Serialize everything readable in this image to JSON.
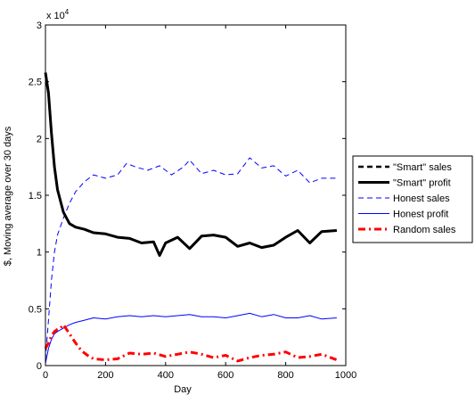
{
  "chart_data": {
    "type": "line",
    "title": "",
    "xlabel": "Day",
    "ylabel": "$, Moving average over 30 days",
    "xlim": [
      0,
      1000
    ],
    "ylim": [
      0,
      30000
    ],
    "x_ticks": [
      "0",
      "200",
      "400",
      "600",
      "800",
      "1000"
    ],
    "y_ticks": [
      "0",
      "0.5",
      "1",
      "1.5",
      "2",
      "2.5",
      "3"
    ],
    "y_multiplier": "x 10",
    "y_multiplier_exp": "4",
    "grid": false,
    "legend_position": "outside-right",
    "series": [
      {
        "name": "\"Smart\" sales",
        "color": "#000000",
        "style": "dashed",
        "x": [
          0,
          10,
          20,
          30,
          40,
          60,
          80,
          100,
          130,
          160,
          200,
          240,
          280,
          320,
          360,
          380,
          400,
          440,
          480,
          520,
          560,
          600,
          640,
          680,
          720,
          760,
          800,
          840,
          880,
          920,
          970
        ],
        "values": [
          25800,
          24000,
          20500,
          17500,
          15500,
          13500,
          12500,
          12200,
          12000,
          11700,
          11600,
          11300,
          11200,
          10800,
          10900,
          9700,
          10800,
          11300,
          10300,
          11400,
          11500,
          11300,
          10500,
          10800,
          10400,
          10600,
          11300,
          11900,
          10800,
          11800,
          11900
        ]
      },
      {
        "name": "\"Smart\" profit",
        "color": "#000000",
        "style": "solid-thick",
        "x": [
          0,
          10,
          20,
          30,
          40,
          60,
          80,
          100,
          130,
          160,
          200,
          240,
          280,
          320,
          360,
          380,
          400,
          440,
          480,
          520,
          560,
          600,
          640,
          680,
          720,
          760,
          800,
          840,
          880,
          920,
          970
        ],
        "values": [
          25800,
          24000,
          20500,
          17500,
          15500,
          13500,
          12500,
          12200,
          12000,
          11700,
          11600,
          11300,
          11200,
          10800,
          10900,
          9700,
          10800,
          11300,
          10300,
          11400,
          11500,
          11300,
          10500,
          10800,
          10400,
          10600,
          11300,
          11900,
          10800,
          11800,
          11900
        ]
      },
      {
        "name": "Honest sales",
        "color": "#0000ff",
        "style": "dashed",
        "x": [
          0,
          10,
          20,
          30,
          40,
          60,
          80,
          100,
          130,
          160,
          200,
          240,
          270,
          300,
          340,
          380,
          420,
          460,
          480,
          520,
          560,
          600,
          640,
          680,
          720,
          760,
          800,
          840,
          880,
          920,
          970
        ],
        "values": [
          500,
          4000,
          7500,
          10000,
          11500,
          13000,
          14300,
          15300,
          16200,
          16800,
          16500,
          16800,
          17800,
          17500,
          17200,
          17600,
          16800,
          17500,
          18100,
          16900,
          17200,
          16800,
          16900,
          18300,
          17400,
          17600,
          16700,
          17200,
          16100,
          16500,
          16500
        ]
      },
      {
        "name": "Honest profit",
        "color": "#0000ff",
        "style": "solid",
        "x": [
          0,
          10,
          20,
          30,
          40,
          60,
          80,
          100,
          130,
          160,
          200,
          240,
          280,
          320,
          360,
          400,
          440,
          480,
          520,
          560,
          600,
          640,
          680,
          720,
          760,
          800,
          840,
          880,
          920,
          970
        ],
        "values": [
          200,
          1500,
          2300,
          2800,
          3000,
          3300,
          3600,
          3800,
          4000,
          4200,
          4100,
          4300,
          4400,
          4300,
          4400,
          4300,
          4400,
          4500,
          4300,
          4300,
          4200,
          4400,
          4600,
          4300,
          4500,
          4200,
          4200,
          4400,
          4100,
          4200
        ]
      },
      {
        "name": "Random sales",
        "color": "#ff0000",
        "style": "dash-dot",
        "x": [
          0,
          10,
          20,
          30,
          40,
          50,
          60,
          70,
          80,
          100,
          120,
          140,
          160,
          200,
          240,
          280,
          320,
          360,
          400,
          440,
          480,
          520,
          560,
          600,
          640,
          680,
          720,
          760,
          800,
          840,
          880,
          920,
          970
        ],
        "values": [
          1500,
          2000,
          2600,
          3000,
          3200,
          3300,
          3600,
          3200,
          2800,
          2000,
          1300,
          900,
          600,
          500,
          600,
          1100,
          1000,
          1100,
          800,
          1000,
          1200,
          1000,
          700,
          900,
          400,
          700,
          900,
          1000,
          1200,
          700,
          800,
          1000,
          500
        ]
      }
    ]
  }
}
